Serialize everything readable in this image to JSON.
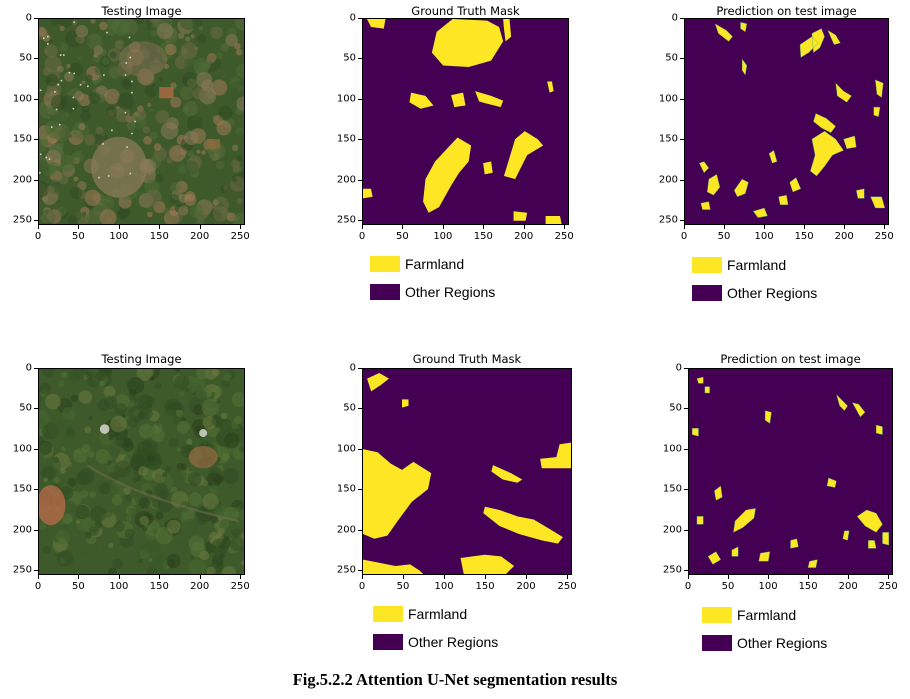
{
  "figure": {
    "caption": "Fig.5.2.2 Attention U-Net segmentation results",
    "colors": {
      "farmland": "#fde725",
      "other_regions": "#440154",
      "satellite_base": "#3f5a2a"
    },
    "axis_ticks": [
      0,
      50,
      100,
      150,
      200,
      250
    ],
    "legend": [
      {
        "label": "Farmland",
        "color": "#fde725"
      },
      {
        "label": "Other Regions",
        "color": "#440154"
      }
    ],
    "rows": [
      {
        "panels": [
          {
            "title": "Testing Image",
            "kind": "image"
          },
          {
            "title": "Ground Truth Mask",
            "kind": "mask"
          },
          {
            "title": "Prediction on test image",
            "kind": "prediction"
          }
        ]
      },
      {
        "panels": [
          {
            "title": "Testing Image",
            "kind": "image"
          },
          {
            "title": "Ground Truth Mask",
            "kind": "mask"
          },
          {
            "title": "Prediction on test image",
            "kind": "prediction"
          }
        ]
      }
    ]
  }
}
